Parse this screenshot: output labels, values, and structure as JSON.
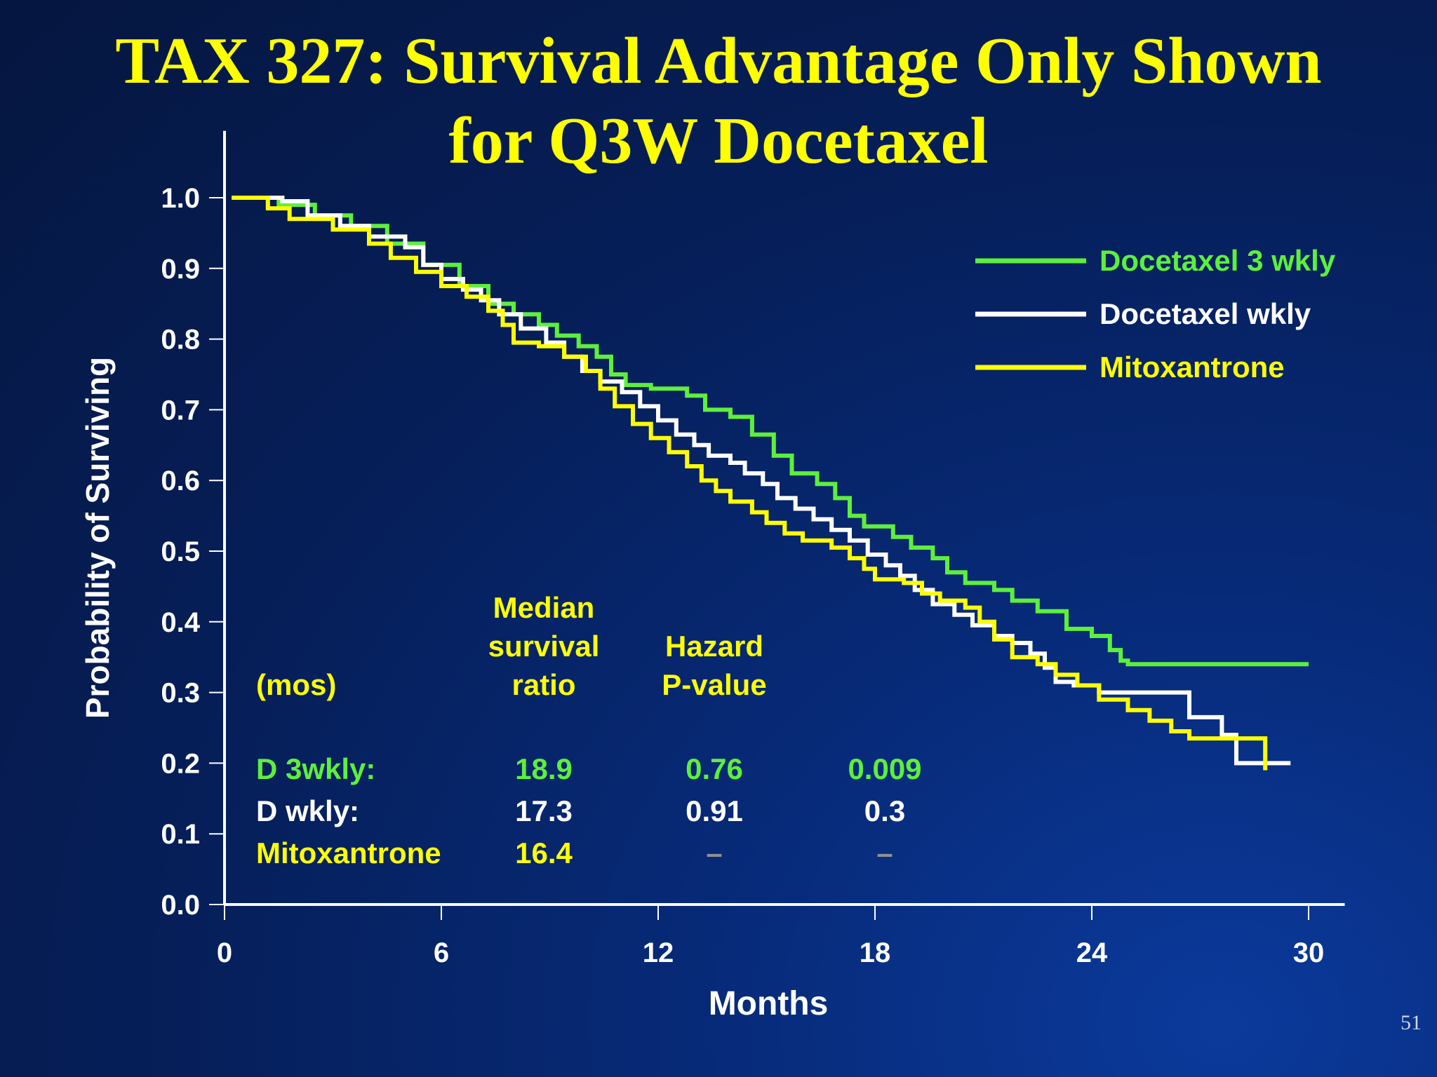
{
  "slide": {
    "title_line1": "TAX 327:  Survival Advantage Only Shown",
    "title_line2": "for Q3W Docetaxel",
    "page_number": "51"
  },
  "colors": {
    "green": "#5cf03c",
    "white": "#ffffff",
    "yellow": "#ffff00",
    "gray": "#909090",
    "title": "#ffff00"
  },
  "stats_table": {
    "row_header": "(mos)",
    "col_median": [
      "Median",
      "survival",
      "ratio"
    ],
    "col_hazard": [
      "Hazard",
      "P-value"
    ],
    "rows": [
      {
        "label": "D  3wkly:",
        "median": "18.9",
        "hazard": "0.76",
        "pvalue": "0.009",
        "color": "#5cf03c"
      },
      {
        "label": "D  wkly:",
        "median": "17.3",
        "hazard": "0.91",
        "pvalue": "0.3",
        "color": "#ffffff"
      },
      {
        "label": "Mitoxantrone",
        "median": "16.4",
        "hazard": "–",
        "pvalue": "–",
        "color": "#ffff00"
      }
    ]
  },
  "chart_data": {
    "type": "line",
    "title": "",
    "xlabel": "Months",
    "ylabel": "Probability of Surviving",
    "xlim": [
      0,
      31
    ],
    "ylim": [
      0,
      1.05
    ],
    "xticks": [
      0,
      6,
      12,
      18,
      24,
      30
    ],
    "yticks": [
      "0.0",
      "0.1",
      "0.2",
      "0.3",
      "0.4",
      "0.5",
      "0.6",
      "0.7",
      "0.8",
      "0.9",
      "1.0"
    ],
    "grid": false,
    "legend_position": "top-right",
    "series": [
      {
        "name": "Docetaxel 3 wkly",
        "color": "#5cf03c",
        "points": [
          [
            0.2,
            1.0
          ],
          [
            1.5,
            0.99
          ],
          [
            2.5,
            0.975
          ],
          [
            3.5,
            0.96
          ],
          [
            4.5,
            0.935
          ],
          [
            5.5,
            0.905
          ],
          [
            6.5,
            0.875
          ],
          [
            7.3,
            0.85
          ],
          [
            8.0,
            0.835
          ],
          [
            8.7,
            0.82
          ],
          [
            9.2,
            0.805
          ],
          [
            9.8,
            0.79
          ],
          [
            10.3,
            0.775
          ],
          [
            10.7,
            0.75
          ],
          [
            11.1,
            0.735
          ],
          [
            11.8,
            0.73
          ],
          [
            12.8,
            0.72
          ],
          [
            13.3,
            0.7
          ],
          [
            14.0,
            0.69
          ],
          [
            14.6,
            0.665
          ],
          [
            15.2,
            0.635
          ],
          [
            15.7,
            0.61
          ],
          [
            16.4,
            0.595
          ],
          [
            16.9,
            0.575
          ],
          [
            17.3,
            0.55
          ],
          [
            17.7,
            0.535
          ],
          [
            18.5,
            0.52
          ],
          [
            19.0,
            0.505
          ],
          [
            19.6,
            0.49
          ],
          [
            20.0,
            0.47
          ],
          [
            20.5,
            0.455
          ],
          [
            21.3,
            0.445
          ],
          [
            21.8,
            0.43
          ],
          [
            22.5,
            0.415
          ],
          [
            23.3,
            0.39
          ],
          [
            24.0,
            0.38
          ],
          [
            24.5,
            0.36
          ],
          [
            24.8,
            0.345
          ],
          [
            25.0,
            0.34
          ],
          [
            30.0,
            0.34
          ]
        ]
      },
      {
        "name": "Docetaxel wkly",
        "color": "#ffffff",
        "points": [
          [
            0.2,
            1.0
          ],
          [
            1.6,
            0.995
          ],
          [
            2.3,
            0.975
          ],
          [
            3.2,
            0.96
          ],
          [
            4.0,
            0.945
          ],
          [
            5.0,
            0.93
          ],
          [
            5.5,
            0.905
          ],
          [
            6.0,
            0.885
          ],
          [
            6.6,
            0.87
          ],
          [
            7.1,
            0.855
          ],
          [
            7.6,
            0.835
          ],
          [
            8.2,
            0.815
          ],
          [
            8.9,
            0.795
          ],
          [
            9.4,
            0.775
          ],
          [
            9.9,
            0.755
          ],
          [
            10.4,
            0.74
          ],
          [
            11.0,
            0.725
          ],
          [
            11.5,
            0.705
          ],
          [
            12.0,
            0.685
          ],
          [
            12.5,
            0.665
          ],
          [
            13.0,
            0.65
          ],
          [
            13.4,
            0.635
          ],
          [
            14.0,
            0.625
          ],
          [
            14.4,
            0.61
          ],
          [
            14.9,
            0.595
          ],
          [
            15.3,
            0.575
          ],
          [
            15.8,
            0.56
          ],
          [
            16.3,
            0.545
          ],
          [
            16.8,
            0.53
          ],
          [
            17.3,
            0.515
          ],
          [
            17.8,
            0.495
          ],
          [
            18.3,
            0.48
          ],
          [
            18.7,
            0.465
          ],
          [
            19.1,
            0.445
          ],
          [
            19.6,
            0.425
          ],
          [
            20.2,
            0.41
          ],
          [
            20.7,
            0.395
          ],
          [
            21.3,
            0.38
          ],
          [
            21.8,
            0.37
          ],
          [
            22.3,
            0.355
          ],
          [
            22.7,
            0.335
          ],
          [
            23.0,
            0.315
          ],
          [
            23.5,
            0.31
          ],
          [
            24.2,
            0.3
          ],
          [
            25.5,
            0.3
          ],
          [
            26.4,
            0.3
          ],
          [
            26.7,
            0.265
          ],
          [
            27.6,
            0.24
          ],
          [
            28.0,
            0.2
          ],
          [
            29.5,
            0.2
          ]
        ]
      },
      {
        "name": "Mitoxantrone",
        "color": "#ffff00",
        "points": [
          [
            0.2,
            1.0
          ],
          [
            1.2,
            0.985
          ],
          [
            1.8,
            0.97
          ],
          [
            3.0,
            0.955
          ],
          [
            4.0,
            0.935
          ],
          [
            4.6,
            0.915
          ],
          [
            5.3,
            0.895
          ],
          [
            6.0,
            0.875
          ],
          [
            6.7,
            0.86
          ],
          [
            7.3,
            0.84
          ],
          [
            7.7,
            0.82
          ],
          [
            8.0,
            0.795
          ],
          [
            8.7,
            0.79
          ],
          [
            9.4,
            0.775
          ],
          [
            10.0,
            0.755
          ],
          [
            10.4,
            0.73
          ],
          [
            10.8,
            0.705
          ],
          [
            11.3,
            0.68
          ],
          [
            11.8,
            0.66
          ],
          [
            12.3,
            0.64
          ],
          [
            12.8,
            0.62
          ],
          [
            13.2,
            0.6
          ],
          [
            13.6,
            0.585
          ],
          [
            14.0,
            0.57
          ],
          [
            14.6,
            0.555
          ],
          [
            15.0,
            0.54
          ],
          [
            15.5,
            0.525
          ],
          [
            16.0,
            0.515
          ],
          [
            16.8,
            0.505
          ],
          [
            17.3,
            0.49
          ],
          [
            17.7,
            0.475
          ],
          [
            18.0,
            0.46
          ],
          [
            18.8,
            0.455
          ],
          [
            19.3,
            0.44
          ],
          [
            19.8,
            0.43
          ],
          [
            20.5,
            0.42
          ],
          [
            20.9,
            0.4
          ],
          [
            21.3,
            0.375
          ],
          [
            21.8,
            0.35
          ],
          [
            22.5,
            0.34
          ],
          [
            23.0,
            0.325
          ],
          [
            23.6,
            0.31
          ],
          [
            24.2,
            0.29
          ],
          [
            25.0,
            0.275
          ],
          [
            25.6,
            0.26
          ],
          [
            26.2,
            0.245
          ],
          [
            26.7,
            0.235
          ],
          [
            28.8,
            0.235
          ],
          [
            28.8,
            0.19
          ]
        ]
      }
    ]
  }
}
